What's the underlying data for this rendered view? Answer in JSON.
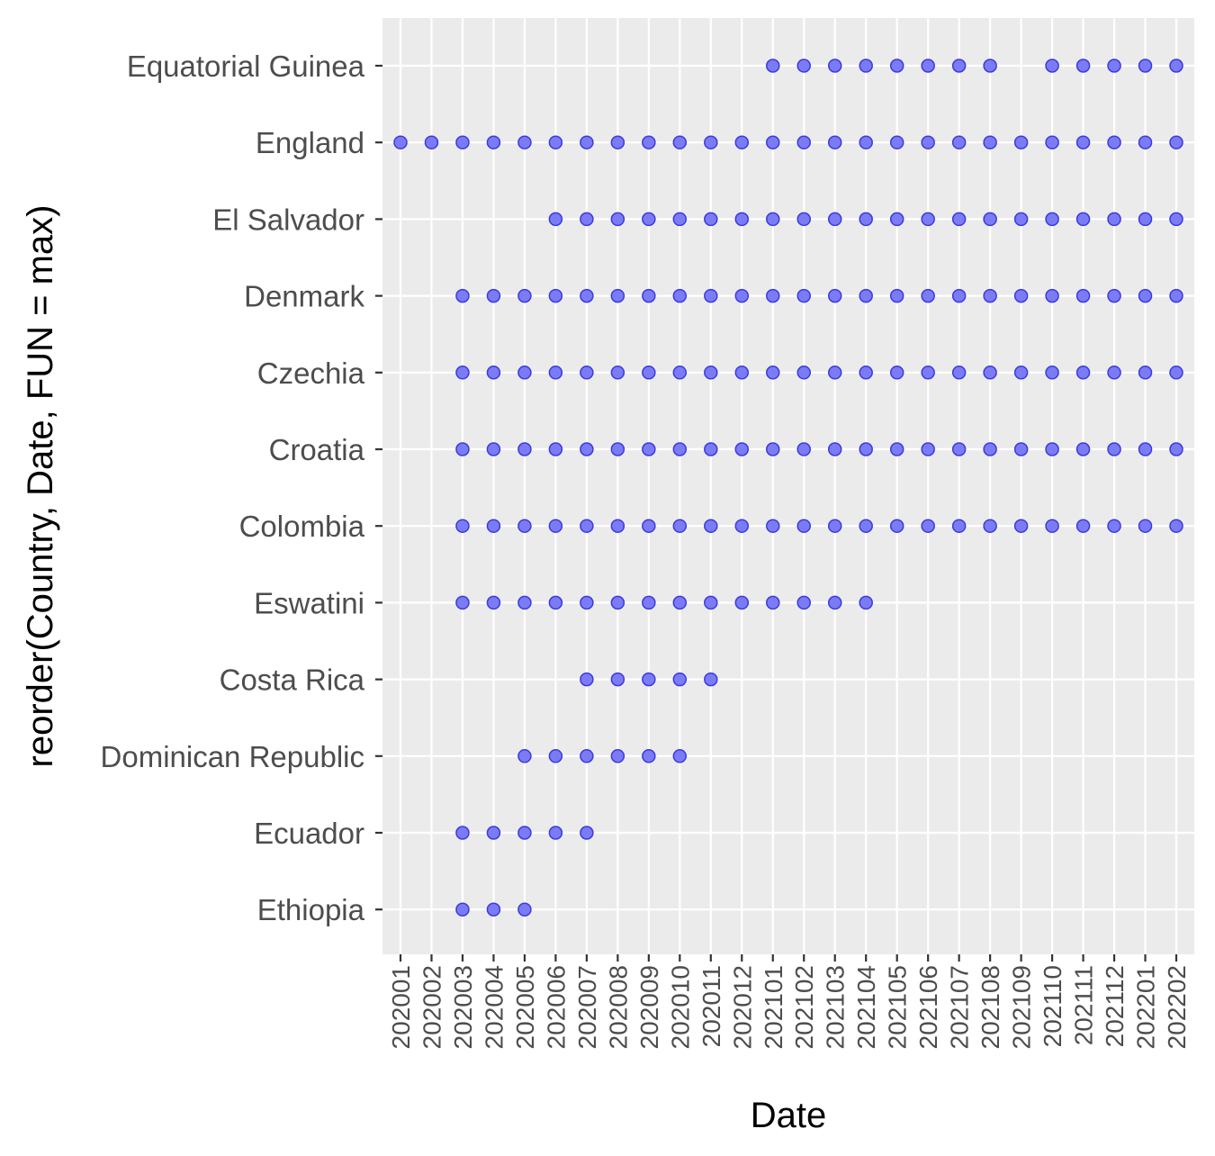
{
  "chart_data": {
    "type": "scatter",
    "title": "",
    "xlabel": "Date",
    "ylabel": "reorder(Country, Date, FUN = max)",
    "x_categories": [
      "202001",
      "202002",
      "202003",
      "202004",
      "202005",
      "202006",
      "202007",
      "202008",
      "202009",
      "202010",
      "202011",
      "202012",
      "202101",
      "202102",
      "202103",
      "202104",
      "202105",
      "202106",
      "202107",
      "202108",
      "202109",
      "202110",
      "202111",
      "202112",
      "202201",
      "202202"
    ],
    "y_categories_top_to_bottom": [
      "Equatorial Guinea",
      "England",
      "El Salvador",
      "Denmark",
      "Czechia",
      "Croatia",
      "Colombia",
      "Eswatini",
      "Costa Rica",
      "Dominican Republic",
      "Ecuador",
      "Ethiopia"
    ],
    "points": [
      {
        "country": "Equatorial Guinea",
        "dates": [
          "202101",
          "202102",
          "202103",
          "202104",
          "202105",
          "202106",
          "202107",
          "202108",
          "202110",
          "202111",
          "202112",
          "202201",
          "202202"
        ]
      },
      {
        "country": "England",
        "dates": [
          "202001",
          "202002",
          "202003",
          "202004",
          "202005",
          "202006",
          "202007",
          "202008",
          "202009",
          "202010",
          "202011",
          "202012",
          "202101",
          "202102",
          "202103",
          "202104",
          "202105",
          "202106",
          "202107",
          "202108",
          "202109",
          "202110",
          "202111",
          "202112",
          "202201",
          "202202"
        ]
      },
      {
        "country": "El Salvador",
        "dates": [
          "202006",
          "202007",
          "202008",
          "202009",
          "202010",
          "202011",
          "202012",
          "202101",
          "202102",
          "202103",
          "202104",
          "202105",
          "202106",
          "202107",
          "202108",
          "202109",
          "202110",
          "202111",
          "202112",
          "202201",
          "202202"
        ]
      },
      {
        "country": "Denmark",
        "dates": [
          "202003",
          "202004",
          "202005",
          "202006",
          "202007",
          "202008",
          "202009",
          "202010",
          "202011",
          "202012",
          "202101",
          "202102",
          "202103",
          "202104",
          "202105",
          "202106",
          "202107",
          "202108",
          "202109",
          "202110",
          "202111",
          "202112",
          "202201",
          "202202"
        ]
      },
      {
        "country": "Czechia",
        "dates": [
          "202003",
          "202004",
          "202005",
          "202006",
          "202007",
          "202008",
          "202009",
          "202010",
          "202011",
          "202012",
          "202101",
          "202102",
          "202103",
          "202104",
          "202105",
          "202106",
          "202107",
          "202108",
          "202109",
          "202110",
          "202111",
          "202112",
          "202201",
          "202202"
        ]
      },
      {
        "country": "Croatia",
        "dates": [
          "202003",
          "202004",
          "202005",
          "202006",
          "202007",
          "202008",
          "202009",
          "202010",
          "202011",
          "202012",
          "202101",
          "202102",
          "202103",
          "202104",
          "202105",
          "202106",
          "202107",
          "202108",
          "202109",
          "202110",
          "202111",
          "202112",
          "202201",
          "202202"
        ]
      },
      {
        "country": "Colombia",
        "dates": [
          "202003",
          "202004",
          "202005",
          "202006",
          "202007",
          "202008",
          "202009",
          "202010",
          "202011",
          "202012",
          "202101",
          "202102",
          "202103",
          "202104",
          "202105",
          "202106",
          "202107",
          "202108",
          "202109",
          "202110",
          "202111",
          "202112",
          "202201",
          "202202"
        ]
      },
      {
        "country": "Eswatini",
        "dates": [
          "202003",
          "202004",
          "202005",
          "202006",
          "202007",
          "202008",
          "202009",
          "202010",
          "202011",
          "202012",
          "202101",
          "202102",
          "202103",
          "202104"
        ]
      },
      {
        "country": "Costa Rica",
        "dates": [
          "202007",
          "202008",
          "202009",
          "202010",
          "202011"
        ]
      },
      {
        "country": "Dominican Republic",
        "dates": [
          "202005",
          "202006",
          "202007",
          "202008",
          "202009",
          "202010"
        ]
      },
      {
        "country": "Ecuador",
        "dates": [
          "202003",
          "202004",
          "202005",
          "202006",
          "202007"
        ]
      },
      {
        "country": "Ethiopia",
        "dates": [
          "202003",
          "202004",
          "202005"
        ]
      }
    ],
    "grid": true,
    "legend": "none",
    "colors": {
      "panel_background": "#ebebeb",
      "point_fill": "#7b7bf5",
      "point_stroke": "#3a3ae0",
      "gridline": "#ffffff"
    }
  }
}
